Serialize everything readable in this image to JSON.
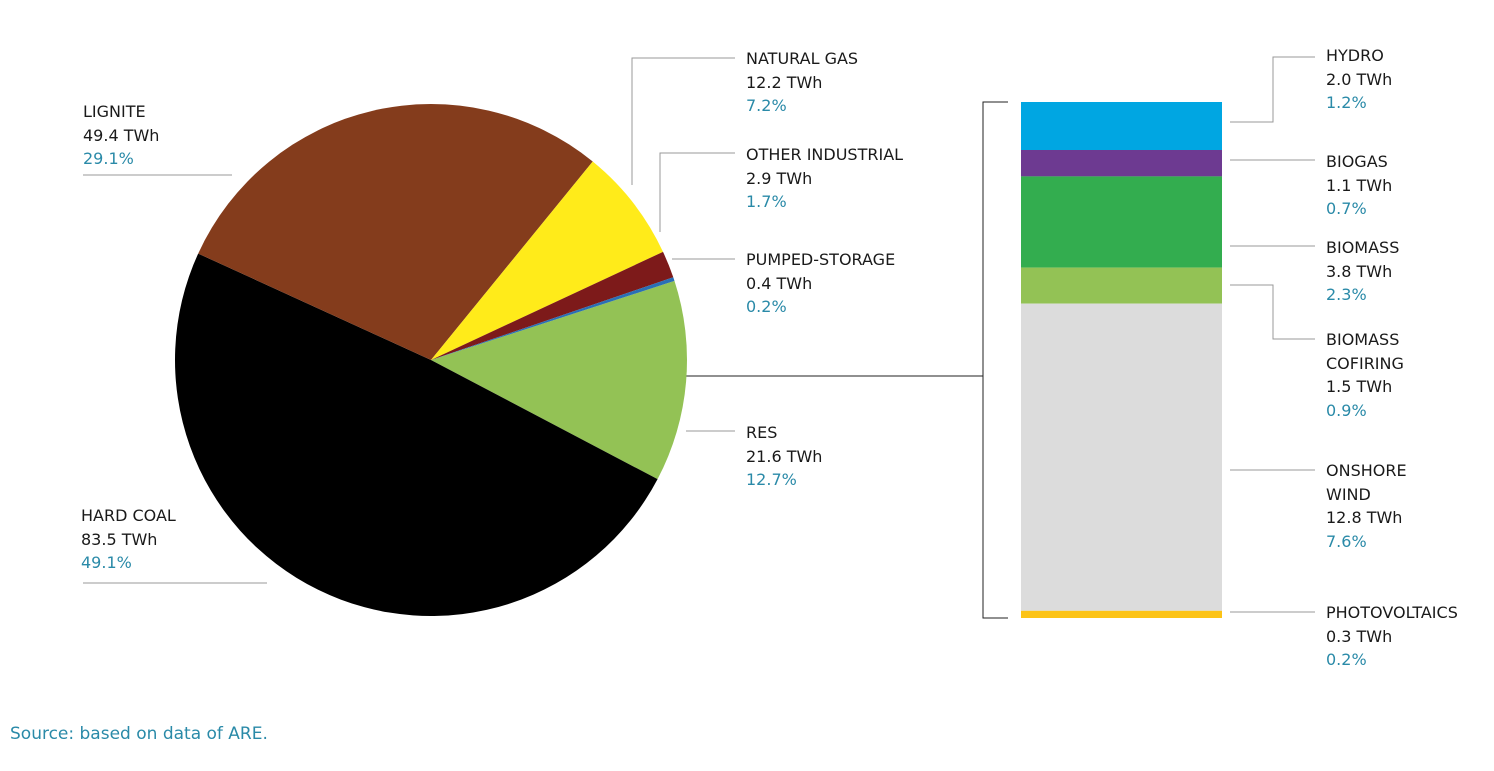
{
  "chart_data": [
    {
      "type": "pie",
      "categories": [
        "RES",
        "HARD COAL",
        "LIGNITE",
        "NATURAL GAS",
        "OTHER INDUSTRIAL",
        "PUMPED-STORAGE"
      ],
      "values": [
        21.6,
        83.5,
        49.4,
        12.2,
        2.9,
        0.4
      ],
      "value_labels": [
        "21.6 TWh",
        "83.5 TWh",
        "49.4 TWh",
        "12.2 TWh",
        "2.9 TWh",
        "0.4 TWh"
      ],
      "shares": [
        12.7,
        49.1,
        29.1,
        7.2,
        1.7,
        0.2
      ],
      "share_labels": [
        "12.7%",
        "49.1%",
        "29.1%",
        "7.2%",
        "1.7%",
        "0.2%"
      ],
      "colors": [
        "#93c255",
        "#000000",
        "#843c1c",
        "#ffeb1a",
        "#7d1a1a",
        "#2a6fb5"
      ]
    },
    {
      "type": "bar",
      "stacked": true,
      "categories": [
        "HYDRO",
        "BIOGAS",
        "BIOMASS",
        "BIOMASS COFIRING",
        "ONSHORE WIND",
        "PHOTOVOLTAICS"
      ],
      "values": [
        2.0,
        1.1,
        3.8,
        1.5,
        12.8,
        0.3
      ],
      "value_labels": [
        "2.0 TWh",
        "1.1 TWh",
        "3.8 TWh",
        "1.5 TWh",
        "12.8 TWh",
        "0.3 TWh"
      ],
      "shares": [
        1.2,
        0.7,
        2.3,
        0.9,
        7.6,
        0.2
      ],
      "share_labels": [
        "1.2%",
        "0.7%",
        "2.3%",
        "0.9%",
        "7.6%",
        "0.2%"
      ],
      "colors": [
        "#00a6e2",
        "#6d3a91",
        "#33ad4f",
        "#93c255",
        "#dcdcdc",
        "#fcc316"
      ]
    }
  ],
  "source": "Source: based on data of ARE."
}
